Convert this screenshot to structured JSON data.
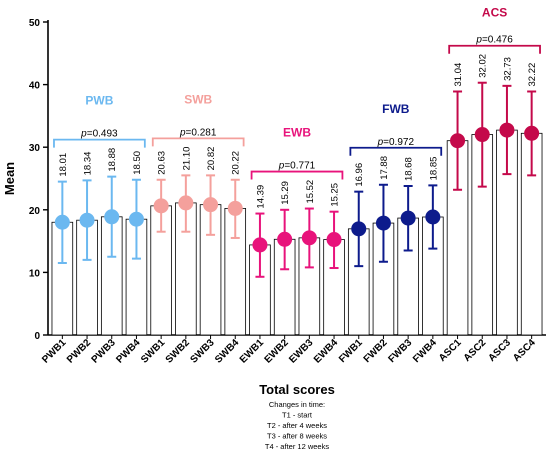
{
  "chart_data": {
    "type": "bar",
    "ylabel": "Mean",
    "xlabel": "Total scores",
    "ylim": [
      0,
      50
    ],
    "yticks": [
      0,
      10,
      20,
      30,
      40,
      50
    ],
    "grid": false,
    "groups": [
      {
        "name": "PWB",
        "color": "#6BB8F0",
        "bracket_color": "#6BB8F0",
        "p_prefix": "p",
        "p_value": "=0.493",
        "categories": [
          "PWB1",
          "PWB2",
          "PWB3",
          "PWB4"
        ],
        "values": [
          18.01,
          18.34,
          18.88,
          18.5
        ],
        "value_labels": [
          "18.01",
          "18.34",
          "18.88",
          "18.50"
        ],
        "err_low": [
          11.5,
          12.0,
          12.5,
          12.2
        ],
        "err_high": [
          24.5,
          24.7,
          25.3,
          24.8
        ]
      },
      {
        "name": "SWB",
        "color": "#F4A09C",
        "bracket_color": "#F4A09C",
        "p_prefix": "p",
        "p_value": "=0.281",
        "categories": [
          "SWB1",
          "SWB2",
          "SWB3",
          "SWB4"
        ],
        "values": [
          20.63,
          21.1,
          20.82,
          20.22
        ],
        "value_labels": [
          "20.63",
          "21.10",
          "20.82",
          "20.22"
        ],
        "err_low": [
          16.5,
          16.5,
          16.0,
          15.5
        ],
        "err_high": [
          24.8,
          25.5,
          25.5,
          24.8
        ]
      },
      {
        "name": "EWB",
        "color": "#E8137B",
        "bracket_color": "#E8137B",
        "p_prefix": "p",
        "p_value": "=0.771",
        "categories": [
          "EWB1",
          "EWB2",
          "EWB3",
          "EWB4"
        ],
        "values": [
          14.39,
          15.29,
          15.52,
          15.25
        ],
        "value_labels": [
          "14.39",
          "15.29",
          "15.52",
          "15.25"
        ],
        "err_low": [
          9.3,
          10.5,
          10.8,
          10.7
        ],
        "err_high": [
          19.4,
          20.0,
          20.2,
          19.7
        ]
      },
      {
        "name": "FWB",
        "color": "#0D1B8C",
        "bracket_color": "#0D1B8C",
        "p_prefix": "p",
        "p_value": "=0.972",
        "categories": [
          "FWB1",
          "FWB2",
          "FWB3",
          "FWB4"
        ],
        "values": [
          16.96,
          17.88,
          18.68,
          18.85
        ],
        "value_labels": [
          "16.96",
          "17.88",
          "18.68",
          "18.85"
        ],
        "err_low": [
          11.0,
          11.7,
          13.5,
          13.8
        ],
        "err_high": [
          22.9,
          24.0,
          23.8,
          23.9
        ]
      },
      {
        "name": "ACS",
        "color": "#C4094A",
        "bracket_color": "#C4094A",
        "p_prefix": "p",
        "p_value": "=0.476",
        "categories": [
          "ASC1",
          "ASC2",
          "ASC3",
          "ASC4"
        ],
        "values": [
          31.04,
          32.02,
          32.73,
          32.22
        ],
        "value_labels": [
          "31.04",
          "32.02",
          "32.73",
          "32.22"
        ],
        "err_low": [
          23.2,
          23.7,
          25.7,
          25.5
        ],
        "err_high": [
          38.9,
          40.3,
          39.8,
          38.9
        ]
      }
    ],
    "notes": [
      "Changes in time:",
      "T1 - start",
      "T2 - after 4 weeks",
      "T3 - after 8 weeks",
      "T4 - after 12 weeks"
    ]
  }
}
